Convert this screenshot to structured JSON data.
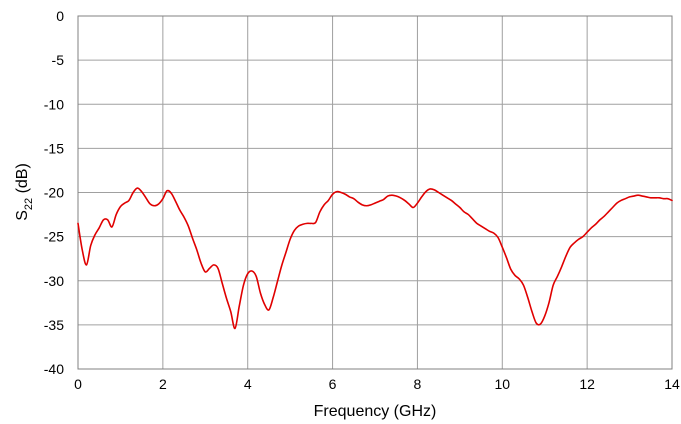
{
  "chart_data": {
    "type": "line",
    "title": "",
    "xlabel": "Frequency (GHz)",
    "ylabel": {
      "main": "S",
      "sub": "22",
      "unit": " (dB)"
    },
    "xlim": [
      0,
      14
    ],
    "ylim": [
      -40,
      0
    ],
    "xticks": [
      0,
      2,
      4,
      6,
      8,
      10,
      12,
      14
    ],
    "yticks": [
      0,
      -5,
      -10,
      -15,
      -20,
      -25,
      -30,
      -35,
      -40
    ],
    "xtick_labels": [
      "0",
      "2",
      "4",
      "6",
      "8",
      "10",
      "12",
      "14"
    ],
    "ytick_labels": [
      "0",
      "-5",
      "-10",
      "-15",
      "-20",
      "-25",
      "-30",
      "-35",
      "-40"
    ],
    "grid": true,
    "legend": "none",
    "series": [
      {
        "color": "#e00000",
        "x": [
          0,
          0.1,
          0.2,
          0.3,
          0.4,
          0.5,
          0.6,
          0.7,
          0.8,
          0.9,
          1.0,
          1.1,
          1.2,
          1.3,
          1.4,
          1.5,
          1.6,
          1.7,
          1.8,
          1.9,
          2.0,
          2.1,
          2.2,
          2.3,
          2.4,
          2.5,
          2.6,
          2.7,
          2.8,
          2.9,
          3.0,
          3.1,
          3.2,
          3.3,
          3.4,
          3.5,
          3.6,
          3.7,
          3.8,
          3.9,
          4.0,
          4.1,
          4.2,
          4.3,
          4.4,
          4.5,
          4.6,
          4.7,
          4.8,
          4.9,
          5.0,
          5.1,
          5.2,
          5.3,
          5.4,
          5.5,
          5.6,
          5.7,
          5.8,
          5.9,
          6.0,
          6.1,
          6.2,
          6.3,
          6.4,
          6.5,
          6.6,
          6.7,
          6.8,
          6.9,
          7.0,
          7.1,
          7.2,
          7.3,
          7.4,
          7.5,
          7.6,
          7.7,
          7.8,
          7.9,
          8.0,
          8.1,
          8.2,
          8.3,
          8.4,
          8.5,
          8.6,
          8.7,
          8.8,
          8.9,
          9.0,
          9.1,
          9.2,
          9.3,
          9.4,
          9.5,
          9.6,
          9.7,
          9.8,
          9.9,
          10.0,
          10.1,
          10.2,
          10.3,
          10.4,
          10.5,
          10.6,
          10.7,
          10.8,
          10.9,
          11.0,
          11.1,
          11.2,
          11.3,
          11.4,
          11.5,
          11.6,
          11.7,
          11.8,
          11.9,
          12.0,
          12.1,
          12.2,
          12.3,
          12.4,
          12.5,
          12.6,
          12.7,
          12.8,
          12.9,
          13.0,
          13.1,
          13.2,
          13.3,
          13.4,
          13.5,
          13.6,
          13.7,
          13.8,
          13.9,
          14.0
        ],
        "y": [
          -23.5,
          -26.5,
          -28.2,
          -26.0,
          -24.8,
          -24.0,
          -23.1,
          -23.1,
          -23.9,
          -22.5,
          -21.6,
          -21.2,
          -20.9,
          -20.0,
          -19.5,
          -19.9,
          -20.6,
          -21.3,
          -21.5,
          -21.3,
          -20.7,
          -19.8,
          -20.1,
          -21.0,
          -22.0,
          -22.8,
          -23.8,
          -25.2,
          -26.5,
          -28.0,
          -29.0,
          -28.6,
          -28.2,
          -28.6,
          -30.3,
          -32.0,
          -33.5,
          -35.4,
          -32.9,
          -30.5,
          -29.2,
          -28.9,
          -29.5,
          -31.4,
          -32.7,
          -33.3,
          -31.9,
          -30.1,
          -28.3,
          -26.8,
          -25.3,
          -24.3,
          -23.8,
          -23.6,
          -23.5,
          -23.5,
          -23.4,
          -22.2,
          -21.4,
          -20.9,
          -20.2,
          -19.9,
          -20.0,
          -20.2,
          -20.5,
          -20.7,
          -21.1,
          -21.4,
          -21.5,
          -21.4,
          -21.2,
          -21.0,
          -20.8,
          -20.4,
          -20.3,
          -20.4,
          -20.6,
          -20.9,
          -21.3,
          -21.7,
          -21.2,
          -20.5,
          -19.9,
          -19.6,
          -19.7,
          -20.0,
          -20.3,
          -20.6,
          -20.9,
          -21.3,
          -21.7,
          -22.2,
          -22.5,
          -23.0,
          -23.5,
          -23.8,
          -24.1,
          -24.4,
          -24.6,
          -25.1,
          -26.2,
          -27.4,
          -28.7,
          -29.4,
          -29.8,
          -30.5,
          -31.9,
          -33.5,
          -34.8,
          -34.9,
          -34.0,
          -32.5,
          -30.5,
          -29.5,
          -28.4,
          -27.2,
          -26.2,
          -25.7,
          -25.3,
          -25.0,
          -24.5,
          -24.0,
          -23.6,
          -23.1,
          -22.7,
          -22.2,
          -21.7,
          -21.2,
          -20.9,
          -20.7,
          -20.5,
          -20.4,
          -20.3,
          -20.4,
          -20.5,
          -20.6,
          -20.6,
          -20.6,
          -20.7,
          -20.7,
          -20.9
        ]
      }
    ]
  }
}
